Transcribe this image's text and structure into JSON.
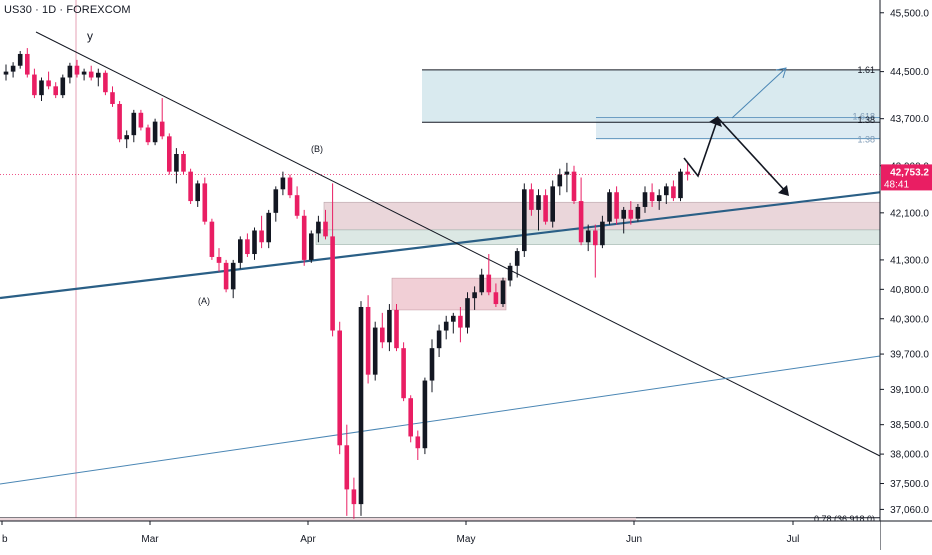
{
  "symbol": "US30 · 1D · FOREXCOM",
  "colors": {
    "up": "#131722",
    "down": "#e91e63",
    "trend": "#2a5f86",
    "channel": "#4a86b4",
    "zone_fill": "#d2e6ec",
    "supply_fill": "#ead6da",
    "demand_fill": "#dce8e4",
    "price_badge": "#e91e63"
  },
  "chart_data": {
    "type": "candlestick",
    "ylim": [
      36880,
      45700
    ],
    "y_ticks": [
      "45,500.0",
      "44,500.0",
      "43,700.0",
      "42,900.0",
      "42,100.0",
      "41,300.0",
      "40,800.0",
      "40,300.0",
      "39,700.0",
      "39,100.0",
      "38,500.0",
      "38,000.0",
      "37,500.0",
      "37,060.0"
    ],
    "x_ticks": [
      "b",
      "Mar",
      "Apr",
      "May",
      "Jun",
      "Jul"
    ],
    "current_price": "42,753.2",
    "countdown": "48:41",
    "wave_labels": [
      "y",
      "(B)",
      "(A)"
    ],
    "fib_levels": [
      {
        "label": "1.61",
        "value": 44530
      },
      {
        "label": "1.618",
        "value": 43720
      },
      {
        "label": "1.38",
        "value": 43640
      },
      {
        "label": "1.38",
        "value": 43360
      },
      {
        "label": "0.78 (36,918.0)",
        "value": 36918
      }
    ],
    "candles": [
      [
        44450,
        44620,
        44350,
        44500
      ],
      [
        44500,
        44660,
        44400,
        44600
      ],
      [
        44600,
        44850,
        44550,
        44800
      ],
      [
        44800,
        44900,
        44400,
        44450
      ],
      [
        44450,
        44550,
        44050,
        44100
      ],
      [
        44100,
        44400,
        44000,
        44350
      ],
      [
        44350,
        44500,
        44200,
        44250
      ],
      [
        44250,
        44320,
        44050,
        44100
      ],
      [
        44100,
        44450,
        44050,
        44400
      ],
      [
        44400,
        44650,
        44300,
        44600
      ],
      [
        44600,
        44700,
        44400,
        44450
      ],
      [
        44450,
        44550,
        44350,
        44500
      ],
      [
        44500,
        44600,
        44350,
        44400
      ],
      [
        44400,
        44550,
        44250,
        44480
      ],
      [
        44480,
        44520,
        44100,
        44150
      ],
      [
        44150,
        44250,
        43900,
        43950
      ],
      [
        43950,
        44000,
        43300,
        43350
      ],
      [
        43350,
        43500,
        43200,
        43420
      ],
      [
        43420,
        43850,
        43300,
        43800
      ],
      [
        43800,
        43850,
        43500,
        43550
      ],
      [
        43550,
        43600,
        43250,
        43300
      ],
      [
        43300,
        43700,
        43250,
        43650
      ],
      [
        43650,
        44050,
        43350,
        43400
      ],
      [
        43400,
        43450,
        42750,
        42800
      ],
      [
        42800,
        43200,
        42600,
        43100
      ],
      [
        43100,
        43150,
        42750,
        42800
      ],
      [
        42800,
        42850,
        42250,
        42300
      ],
      [
        42300,
        42650,
        42200,
        42600
      ],
      [
        42600,
        42700,
        41900,
        41950
      ],
      [
        41950,
        42000,
        41300,
        41350
      ],
      [
        41350,
        41500,
        41100,
        41250
      ],
      [
        41250,
        41300,
        40750,
        40800
      ],
      [
        40800,
        41300,
        40650,
        41250
      ],
      [
        41250,
        41700,
        41150,
        41650
      ],
      [
        41650,
        41750,
        41350,
        41400
      ],
      [
        41400,
        41850,
        41300,
        41800
      ],
      [
        41800,
        42050,
        41500,
        41600
      ],
      [
        41600,
        42150,
        41500,
        42100
      ],
      [
        42100,
        42550,
        41950,
        42500
      ],
      [
        42500,
        42800,
        42400,
        42700
      ],
      [
        42700,
        42750,
        42350,
        42400
      ],
      [
        42400,
        42550,
        42000,
        42050
      ],
      [
        42050,
        42150,
        41200,
        41300
      ],
      [
        41300,
        41800,
        41250,
        41750
      ],
      [
        41750,
        42050,
        41600,
        41950
      ],
      [
        41950,
        42150,
        41650,
        41700
      ],
      [
        41700,
        42600,
        40000,
        40100
      ],
      [
        40100,
        40250,
        38000,
        38150
      ],
      [
        38150,
        38500,
        36950,
        37400
      ],
      [
        37400,
        37600,
        36900,
        37150
      ],
      [
        37150,
        40600,
        36950,
        40500
      ],
      [
        40500,
        40700,
        39200,
        39350
      ],
      [
        39350,
        40250,
        39250,
        40150
      ],
      [
        40150,
        40400,
        39800,
        39900
      ],
      [
        39900,
        40550,
        39750,
        40450
      ],
      [
        40450,
        40550,
        39750,
        39800
      ],
      [
        39800,
        39900,
        38900,
        38950
      ],
      [
        38950,
        39000,
        38200,
        38300
      ],
      [
        38300,
        38400,
        37900,
        38100
      ],
      [
        38100,
        39300,
        38000,
        39250
      ],
      [
        39250,
        39950,
        39050,
        39800
      ],
      [
        39800,
        40200,
        39650,
        40100
      ],
      [
        40100,
        40350,
        39950,
        40250
      ],
      [
        40250,
        40400,
        40050,
        40350
      ],
      [
        40350,
        40500,
        39900,
        40150
      ],
      [
        40150,
        40750,
        40050,
        40650
      ],
      [
        40650,
        40850,
        40450,
        40750
      ],
      [
        40750,
        41150,
        40700,
        41050
      ],
      [
        41050,
        41400,
        40700,
        40750
      ],
      [
        40750,
        40900,
        40500,
        40550
      ],
      [
        40550,
        41000,
        40500,
        40950
      ],
      [
        40950,
        41250,
        40850,
        41200
      ],
      [
        41200,
        41500,
        41000,
        41450
      ],
      [
        41450,
        42600,
        41350,
        42500
      ],
      [
        42500,
        42600,
        42050,
        42150
      ],
      [
        42150,
        42500,
        41800,
        42400
      ],
      [
        42400,
        42500,
        41900,
        41950
      ],
      [
        41950,
        42650,
        41850,
        42550
      ],
      [
        42550,
        42850,
        42400,
        42750
      ],
      [
        42750,
        42950,
        42450,
        42800
      ],
      [
        42800,
        42900,
        42250,
        42300
      ],
      [
        42300,
        42700,
        41550,
        41600
      ],
      [
        41600,
        41900,
        41450,
        41800
      ],
      [
        41800,
        41900,
        41000,
        41550
      ],
      [
        41550,
        42050,
        41500,
        41950
      ],
      [
        41950,
        42500,
        41900,
        42450
      ],
      [
        42450,
        42550,
        41900,
        42000
      ],
      [
        42000,
        42200,
        41750,
        42150
      ],
      [
        42150,
        42300,
        41900,
        42000
      ],
      [
        42000,
        42250,
        41950,
        42200
      ],
      [
        42200,
        42550,
        42100,
        42450
      ],
      [
        42450,
        42600,
        42200,
        42300
      ],
      [
        42300,
        42500,
        42150,
        42400
      ],
      [
        42400,
        42600,
        42250,
        42550
      ],
      [
        42550,
        42650,
        42300,
        42350
      ],
      [
        42350,
        42850,
        42300,
        42800
      ],
      [
        42800,
        42950,
        42650,
        42750
      ]
    ]
  }
}
